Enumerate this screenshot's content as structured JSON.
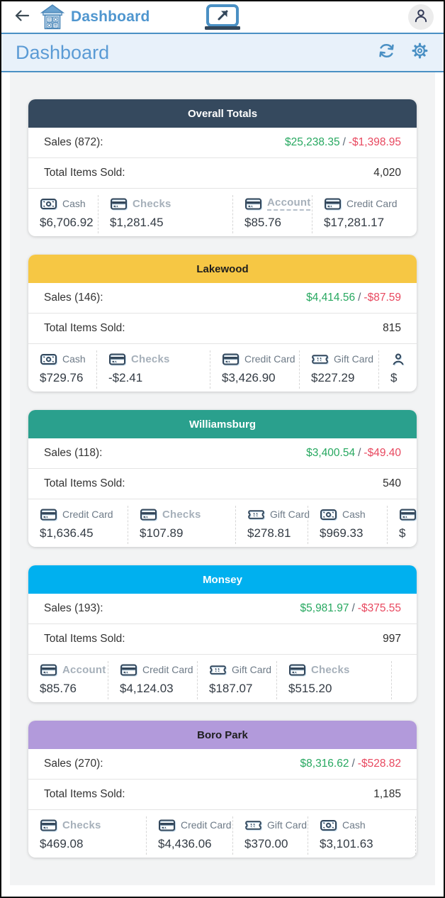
{
  "app_bar": {
    "title": "Dashboard",
    "back_icon": "back-arrow-icon",
    "logo_icon": "storefront-icon",
    "center_icon": "laptop-share-icon",
    "avatar_icon": "person-icon"
  },
  "page_bar": {
    "title": "Dashboard",
    "refresh_icon": "refresh-icon",
    "settings_icon": "gear-icon"
  },
  "colors": {
    "accent": "#5b9bd5",
    "positive": "#27a860",
    "negative": "#e8485f"
  },
  "cards": [
    {
      "name": "Overall Totals",
      "header_bg": "#35495e",
      "header_fg": "#ffffff",
      "sales_label": "Sales (872):",
      "sales_positive": "$25,238.35",
      "sales_separator": "/",
      "sales_negative": "-$1,398.95",
      "items_label": "Total Items Sold:",
      "items_value": "4,020",
      "payments": [
        {
          "icon": "cash-icon",
          "label": "Cash",
          "value": "$6,706.92",
          "dimmed": false
        },
        {
          "icon": "credit-card-icon",
          "label": "Checks",
          "value": "$1,281.45",
          "dimmed": true
        },
        {
          "icon": "credit-card-icon",
          "label": "Account",
          "value": "$85.76",
          "dimmed": true,
          "underlined": true
        },
        {
          "icon": "credit-card-icon",
          "label": "Credit Card",
          "value": "$17,281.17",
          "dimmed": false
        }
      ]
    },
    {
      "name": "Lakewood",
      "header_bg": "#f6c744",
      "header_fg": "#1e1e1e",
      "sales_label": "Sales (146):",
      "sales_positive": "$4,414.56",
      "sales_separator": "/",
      "sales_negative": "-$87.59",
      "items_label": "Total Items Sold:",
      "items_value": "815",
      "payments": [
        {
          "icon": "cash-icon",
          "label": "Cash",
          "value": "$729.76",
          "dimmed": false
        },
        {
          "icon": "credit-card-icon",
          "label": "Checks",
          "value": "-$2.41",
          "dimmed": true
        },
        {
          "icon": "credit-card-icon",
          "label": "Credit Card",
          "value": "$3,426.90",
          "dimmed": false
        },
        {
          "icon": "gift-card-icon",
          "label": "Gift Card",
          "value": "$227.29",
          "dimmed": false
        },
        {
          "icon": "person-icon",
          "label": "",
          "value": "$",
          "dimmed": false,
          "partial": true
        }
      ]
    },
    {
      "name": "Williamsburg",
      "header_bg": "#2aa08d",
      "header_fg": "#ffffff",
      "sales_label": "Sales (118):",
      "sales_positive": "$3,400.54",
      "sales_separator": "/",
      "sales_negative": "-$49.40",
      "items_label": "Total Items Sold:",
      "items_value": "540",
      "payments": [
        {
          "icon": "credit-card-icon",
          "label": "Credit Card",
          "value": "$1,636.45",
          "dimmed": false
        },
        {
          "icon": "credit-card-icon",
          "label": "Checks",
          "value": "$107.89",
          "dimmed": true
        },
        {
          "icon": "gift-card-icon",
          "label": "Gift Card",
          "value": "$278.81",
          "dimmed": false
        },
        {
          "icon": "cash-icon",
          "label": "Cash",
          "value": "$969.33",
          "dimmed": false
        },
        {
          "icon": "credit-card-icon",
          "label": "",
          "value": "$",
          "dimmed": false,
          "partial": true
        }
      ]
    },
    {
      "name": "Monsey",
      "header_bg": "#00b0ef",
      "header_fg": "#ffffff",
      "sales_label": "Sales (193):",
      "sales_positive": "$5,981.97",
      "sales_separator": "/",
      "sales_negative": "-$375.55",
      "items_label": "Total Items Sold:",
      "items_value": "997",
      "payments": [
        {
          "icon": "credit-card-icon",
          "label": "Account",
          "value": "$85.76",
          "dimmed": true
        },
        {
          "icon": "credit-card-icon",
          "label": "Credit Card",
          "value": "$4,124.03",
          "dimmed": false
        },
        {
          "icon": "gift-card-icon",
          "label": "Gift Card",
          "value": "$187.07",
          "dimmed": false
        },
        {
          "icon": "credit-card-icon",
          "label": "Checks",
          "value": "$515.20",
          "dimmed": true
        }
      ]
    },
    {
      "name": "Boro Park",
      "header_bg": "#b29adb",
      "header_fg": "#1e1e1e",
      "sales_label": "Sales (270):",
      "sales_positive": "$8,316.62",
      "sales_separator": "/",
      "sales_negative": "-$528.82",
      "items_label": "Total Items Sold:",
      "items_value": "1,185",
      "payments": [
        {
          "icon": "credit-card-icon",
          "label": "Checks",
          "value": "$469.08",
          "dimmed": true
        },
        {
          "icon": "credit-card-icon",
          "label": "Credit Card",
          "value": "$4,436.06",
          "dimmed": false
        },
        {
          "icon": "gift-card-icon",
          "label": "Gift Card",
          "value": "$370.00",
          "dimmed": false
        },
        {
          "icon": "cash-icon",
          "label": "Cash",
          "value": "$3,101.63",
          "dimmed": false
        }
      ]
    }
  ]
}
